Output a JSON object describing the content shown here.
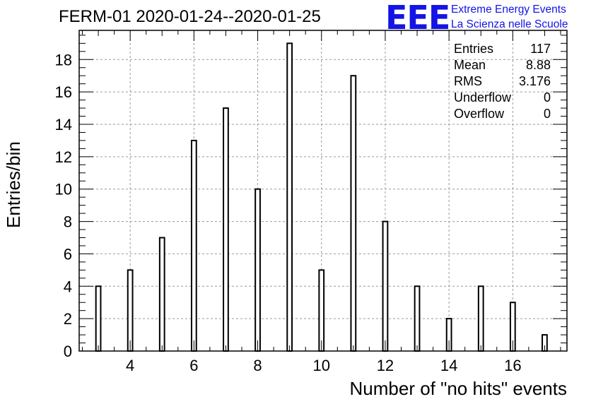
{
  "header": {
    "title": "FERM-01 2020-01-24--2020-01-25",
    "logo_text": "EEE",
    "brand_line1": "Extreme Energy Events",
    "brand_line2": "La Scienza nelle Scuole",
    "brand_color": "#1414e6"
  },
  "stats": {
    "entries_label": "Entries",
    "entries_value": "117",
    "mean_label": "Mean",
    "mean_value": "8.88",
    "rms_label": "RMS",
    "rms_value": "3.176",
    "underflow_label": "Underflow",
    "underflow_value": "0",
    "overflow_label": "Overflow",
    "overflow_value": "0"
  },
  "chart_data": {
    "type": "bar",
    "xlabel": "Number of \"no hits\" events",
    "ylabel": "Entries/bin",
    "xlim": [
      2.4,
      17.7
    ],
    "ylim": [
      0,
      19.8
    ],
    "grid": true,
    "x_ticks": [
      4,
      6,
      8,
      10,
      12,
      14,
      16
    ],
    "y_ticks": [
      0,
      2,
      4,
      6,
      8,
      10,
      12,
      14,
      16,
      18
    ],
    "bin_width": 0.15,
    "categories": [
      3,
      4,
      5,
      6,
      7,
      8,
      9,
      10,
      11,
      12,
      13,
      14,
      15,
      16,
      17
    ],
    "values": [
      4,
      5,
      7,
      13,
      15,
      10,
      19,
      5,
      17,
      8,
      4,
      2,
      4,
      3,
      1
    ]
  }
}
